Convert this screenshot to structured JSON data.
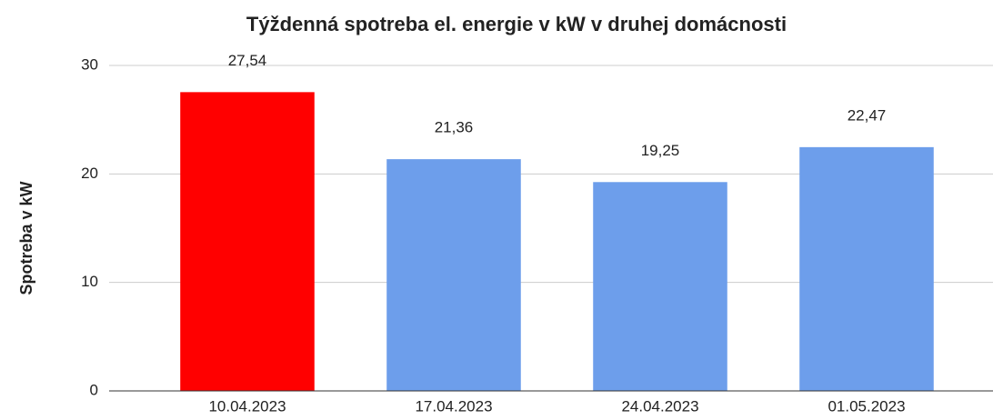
{
  "chart_data": {
    "type": "bar",
    "title": "Týždenná spotreba el. energie v kW v druhej domácnosti",
    "y_label": "Spotreba v kW",
    "categories": [
      "10.04.2023",
      "17.04.2023",
      "24.04.2023",
      "01.05.2023"
    ],
    "values": [
      27.54,
      21.36,
      19.25,
      22.47
    ],
    "value_labels": [
      "27,54",
      "21,36",
      "19,25",
      "22,47"
    ],
    "colors": [
      "#ff0000",
      "#6d9eeb",
      "#6d9eeb",
      "#6d9eeb"
    ],
    "ylim": [
      0,
      30
    ],
    "yticks": [
      0,
      10,
      20,
      30
    ],
    "grid": true
  }
}
